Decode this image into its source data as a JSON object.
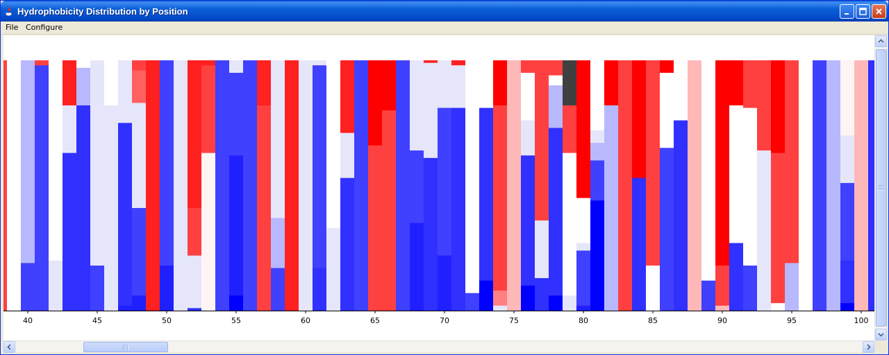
{
  "window": {
    "title": "Hydrophobicity Distribution by Position",
    "buttons": {
      "minimize": "minimize-icon",
      "maximize": "maximize-icon",
      "close": "close-icon"
    }
  },
  "menu": [
    {
      "label": "File"
    },
    {
      "label": "Configure"
    }
  ],
  "colors": {
    "hydrophobic_strong": "#ff0000",
    "hydrophobic_mid": "#ff4040",
    "hydrophobic_light": "#ffb8b8",
    "neutral": "#ffffff",
    "hydrophilic_light": "#e6e6fa",
    "hydrophilic_mid": "#4040ff",
    "hydrophilic_strong": "#0000ff",
    "unknown": "#404040"
  },
  "chart_data": {
    "type": "heatmap",
    "title": "",
    "xlabel": "",
    "ylabel": "",
    "xlim": [
      38,
      101
    ],
    "x_ticks": [
      40,
      45,
      50,
      55,
      60,
      65,
      70,
      75,
      80,
      85,
      90,
      95,
      100
    ],
    "columns": [
      {
        "pos": 38,
        "segments": [
          [
            "#ff4040",
            1
          ]
        ]
      },
      {
        "pos": 39,
        "segments": [
          [
            "#ffffff",
            1
          ]
        ]
      },
      {
        "pos": 40,
        "segments": [
          [
            "#b8b8ff",
            0.81
          ],
          [
            "#4040ff",
            0.19
          ]
        ]
      },
      {
        "pos": 41,
        "segments": [
          [
            "#ff4040",
            0.02
          ],
          [
            "#4040ff",
            0.98
          ]
        ]
      },
      {
        "pos": 42,
        "segments": [
          [
            "#ffffff",
            0.8
          ],
          [
            "#e6e6fa",
            0.2
          ]
        ]
      },
      {
        "pos": 43,
        "segments": [
          [
            "#ff2020",
            0.18
          ],
          [
            "#e6e6fa",
            0.19
          ],
          [
            "#3030ff",
            0.63
          ]
        ]
      },
      {
        "pos": 44,
        "segments": [
          [
            "#ffffff",
            0.03
          ],
          [
            "#b8b8ff",
            0.15
          ],
          [
            "#3030ff",
            0.82
          ]
        ]
      },
      {
        "pos": 45,
        "segments": [
          [
            "#e6e6fa",
            0.82
          ],
          [
            "#4040ff",
            0.18
          ]
        ]
      },
      {
        "pos": 46,
        "segments": [
          [
            "#ffffff",
            0.18
          ],
          [
            "#e6e6fa",
            0.82
          ]
        ]
      },
      {
        "pos": 47,
        "segments": [
          [
            "#e6e6fa",
            0.25
          ],
          [
            "#3030ff",
            0.73
          ],
          [
            "#2020ff",
            0.02
          ]
        ]
      },
      {
        "pos": 48,
        "segments": [
          [
            "#ff4040",
            0.04
          ],
          [
            "#ff6060",
            0.13
          ],
          [
            "#e6e6fa",
            0.42
          ],
          [
            "#4040ff",
            0.35
          ],
          [
            "#2020ff",
            0.06
          ]
        ]
      },
      {
        "pos": 49,
        "segments": [
          [
            "#ff2020",
            1
          ]
        ]
      },
      {
        "pos": 50,
        "segments": [
          [
            "#4040ff",
            0.82
          ],
          [
            "#2020ff",
            0.18
          ]
        ]
      },
      {
        "pos": 51,
        "segments": [
          [
            "#e6e6fa",
            1
          ]
        ]
      },
      {
        "pos": 52,
        "segments": [
          [
            "#ff2020",
            0.59
          ],
          [
            "#ff4040",
            0.19
          ],
          [
            "#e6e6fa",
            0.21
          ],
          [
            "#3030ff",
            0.01
          ]
        ]
      },
      {
        "pos": 53,
        "segments": [
          [
            "#ff2020",
            0.02
          ],
          [
            "#ff4040",
            0.35
          ],
          [
            "#fff4f4",
            0.63
          ]
        ]
      },
      {
        "pos": 54,
        "segments": [
          [
            "#4040ff",
            1
          ]
        ]
      },
      {
        "pos": 55,
        "segments": [
          [
            "#e6e6fa",
            0.05
          ],
          [
            "#4040ff",
            0.33
          ],
          [
            "#2020ff",
            0.56
          ],
          [
            "#0000ff",
            0.06
          ]
        ]
      },
      {
        "pos": 56,
        "segments": [
          [
            "#4040ff",
            1
          ]
        ]
      },
      {
        "pos": 57,
        "segments": [
          [
            "#ff2020",
            0.18
          ],
          [
            "#ff4040",
            0.82
          ]
        ]
      },
      {
        "pos": 58,
        "segments": [
          [
            "#e6e6fa",
            0.63
          ],
          [
            "#b8b8ff",
            0.2
          ],
          [
            "#4040ff",
            0.17
          ]
        ]
      },
      {
        "pos": 59,
        "segments": [
          [
            "#ff2020",
            1
          ]
        ]
      },
      {
        "pos": 60,
        "segments": [
          [
            "#e6e6fa",
            1
          ]
        ]
      },
      {
        "pos": 61,
        "segments": [
          [
            "#e6e6fa",
            0.02
          ],
          [
            "#4040ff",
            0.81
          ],
          [
            "#3030ff",
            0.17
          ]
        ]
      },
      {
        "pos": 62,
        "segments": [
          [
            "#ffffff",
            0.67
          ],
          [
            "#e6e6fa",
            0.33
          ]
        ]
      },
      {
        "pos": 63,
        "segments": [
          [
            "#ff2020",
            0.29
          ],
          [
            "#e6e6fa",
            0.18
          ],
          [
            "#3030ff",
            0.53
          ]
        ]
      },
      {
        "pos": 64,
        "segments": [
          [
            "#4040ff",
            1
          ]
        ]
      },
      {
        "pos": 65,
        "segments": [
          [
            "#ff0000",
            0.34
          ],
          [
            "#ff4040",
            0.66
          ]
        ]
      },
      {
        "pos": 66,
        "segments": [
          [
            "#ff0000",
            0.2
          ],
          [
            "#ff4040",
            0.8
          ]
        ]
      },
      {
        "pos": 67,
        "segments": [
          [
            "#4040ff",
            1
          ]
        ]
      },
      {
        "pos": 68,
        "segments": [
          [
            "#e6e6fa",
            0.36
          ],
          [
            "#4040ff",
            0.29
          ],
          [
            "#2020ff",
            0.35
          ]
        ]
      },
      {
        "pos": 69,
        "segments": [
          [
            "#ff2020",
            0.01
          ],
          [
            "#e6e6fa",
            0.38
          ],
          [
            "#3030ff",
            0.61
          ]
        ]
      },
      {
        "pos": 70,
        "segments": [
          [
            "#e6e6fa",
            0.19
          ],
          [
            "#4040ff",
            0.59
          ],
          [
            "#2020ff",
            0.22
          ]
        ]
      },
      {
        "pos": 71,
        "segments": [
          [
            "#ff2020",
            0.02
          ],
          [
            "#e6e6fa",
            0.17
          ],
          [
            "#3030ff",
            0.81
          ]
        ]
      },
      {
        "pos": 72,
        "segments": [
          [
            "#ffffff",
            0.93
          ],
          [
            "#4040ff",
            0.07
          ]
        ]
      },
      {
        "pos": 73,
        "segments": [
          [
            "#ffffff",
            0.19
          ],
          [
            "#3030ff",
            0.69
          ],
          [
            "#0000ff",
            0.12
          ]
        ]
      },
      {
        "pos": 74,
        "segments": [
          [
            "#ff0000",
            0.18
          ],
          [
            "#ff4040",
            0.74
          ],
          [
            "#ff8080",
            0.06
          ],
          [
            "#e6e6fa",
            0.02
          ]
        ]
      },
      {
        "pos": 75,
        "segments": [
          [
            "#ffb8b8",
            1
          ]
        ]
      },
      {
        "pos": 76,
        "segments": [
          [
            "#ff4040",
            0.05
          ],
          [
            "#ffffff",
            0.19
          ],
          [
            "#e6e6fa",
            0.14
          ],
          [
            "#3030ff",
            0.52
          ],
          [
            "#0000ff",
            0.1
          ]
        ]
      },
      {
        "pos": 77,
        "segments": [
          [
            "#ff4040",
            0.64
          ],
          [
            "#e6e6fa",
            0.23
          ],
          [
            "#3030ff",
            0.13
          ]
        ]
      },
      {
        "pos": 78,
        "segments": [
          [
            "#ff4040",
            0.06
          ],
          [
            "#ffffff",
            0.04
          ],
          [
            "#b8b8ff",
            0.17
          ],
          [
            "#3030ff",
            0.67
          ],
          [
            "#0000ff",
            0.06
          ]
        ]
      },
      {
        "pos": 79,
        "segments": [
          [
            "#404040",
            0.18
          ],
          [
            "#ff4040",
            0.19
          ],
          [
            "#ffffff",
            0.57
          ],
          [
            "#e6e6fa",
            0.06
          ]
        ]
      },
      {
        "pos": 80,
        "segments": [
          [
            "#ff0000",
            0.55
          ],
          [
            "#ffffff",
            0.18
          ],
          [
            "#e6e6fa",
            0.03
          ],
          [
            "#4040ff",
            0.22
          ],
          [
            "#2020ff",
            0.02
          ]
        ]
      },
      {
        "pos": 81,
        "segments": [
          [
            "#ffffff",
            0.28
          ],
          [
            "#e6e6fa",
            0.05
          ],
          [
            "#b8b8ff",
            0.07
          ],
          [
            "#4040ff",
            0.16
          ],
          [
            "#0000ff",
            0.44
          ]
        ]
      },
      {
        "pos": 82,
        "segments": [
          [
            "#ff0000",
            0.18
          ],
          [
            "#b8b8ff",
            0.82
          ]
        ]
      },
      {
        "pos": 83,
        "segments": [
          [
            "#ff4040",
            1
          ]
        ]
      },
      {
        "pos": 84,
        "segments": [
          [
            "#ff0000",
            0.47
          ],
          [
            "#3030ff",
            0.53
          ]
        ]
      },
      {
        "pos": 85,
        "segments": [
          [
            "#ff4040",
            0.82
          ],
          [
            "#ffffff",
            0.18
          ]
        ]
      },
      {
        "pos": 86,
        "segments": [
          [
            "#ff0000",
            0.05
          ],
          [
            "#ffffff",
            0.3
          ],
          [
            "#4040ff",
            0.65
          ]
        ]
      },
      {
        "pos": 87,
        "segments": [
          [
            "#ffffff",
            0.24
          ],
          [
            "#3030ff",
            0.76
          ]
        ]
      },
      {
        "pos": 88,
        "segments": [
          [
            "#ffb8b8",
            1
          ]
        ]
      },
      {
        "pos": 89,
        "segments": [
          [
            "#ffffff",
            0.88
          ],
          [
            "#4040ff",
            0.12
          ]
        ]
      },
      {
        "pos": 90,
        "segments": [
          [
            "#ff0000",
            0.82
          ],
          [
            "#ff4040",
            0.16
          ],
          [
            "#ffb8b8",
            0.02
          ]
        ]
      },
      {
        "pos": 91,
        "segments": [
          [
            "#ff0000",
            0.18
          ],
          [
            "#ffffff",
            0.55
          ],
          [
            "#3030ff",
            0.27
          ]
        ]
      },
      {
        "pos": 92,
        "segments": [
          [
            "#ff4040",
            0.19
          ],
          [
            "#ffffff",
            0.63
          ],
          [
            "#4040ff",
            0.18
          ]
        ]
      },
      {
        "pos": 93,
        "segments": [
          [
            "#ff4040",
            0.36
          ],
          [
            "#e6e6fa",
            0.64
          ]
        ]
      },
      {
        "pos": 94,
        "segments": [
          [
            "#ff0000",
            0.37
          ],
          [
            "#ff4040",
            0.6
          ],
          [
            "#ffffff",
            0.03
          ]
        ]
      },
      {
        "pos": 95,
        "segments": [
          [
            "#ff4040",
            0.81
          ],
          [
            "#b8b8ff",
            0.19
          ]
        ]
      },
      {
        "pos": 96,
        "segments": [
          [
            "#ffffff",
            1
          ]
        ]
      },
      {
        "pos": 97,
        "segments": [
          [
            "#4040ff",
            1
          ]
        ]
      },
      {
        "pos": 98,
        "segments": [
          [
            "#b8b8ff",
            1
          ]
        ]
      },
      {
        "pos": 99,
        "segments": [
          [
            "#fff4f4",
            0.3
          ],
          [
            "#e6e6fa",
            0.19
          ],
          [
            "#4040ff",
            0.31
          ],
          [
            "#3030ff",
            0.17
          ],
          [
            "#0000ff",
            0.03
          ]
        ]
      },
      {
        "pos": 100,
        "segments": [
          [
            "#ffb8b8",
            1
          ]
        ]
      },
      {
        "pos": 101,
        "segments": [
          [
            "#3030ff",
            1
          ]
        ]
      }
    ]
  },
  "scrollbars": {
    "horizontal_position": 0.08,
    "horizontal_visible_fraction": 0.1,
    "vertical_position": 0,
    "vertical_visible_fraction": 1
  }
}
